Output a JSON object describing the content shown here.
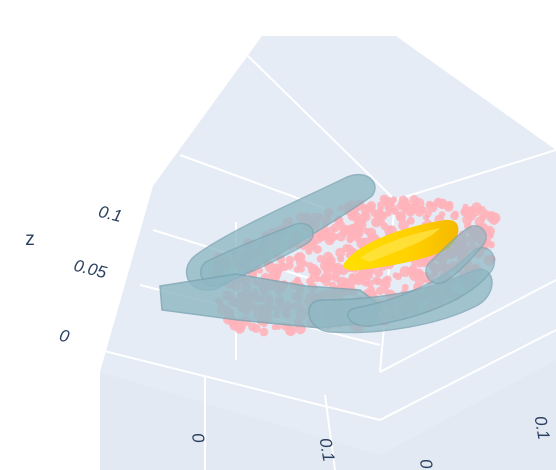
{
  "chart_data": {
    "type": "scatter",
    "projection": "3d",
    "axes": {
      "x": {
        "ticks": [
          "0",
          "0.1"
        ]
      },
      "y": {
        "ticks": [
          "0",
          "0.1"
        ]
      },
      "z": {
        "title": "z",
        "ticks": [
          "0",
          "0.05",
          "0.1"
        ]
      }
    },
    "series": [
      {
        "kind": "point-cloud",
        "color": "#ffb3ba"
      },
      {
        "kind": "surface",
        "color": "#ffd400"
      },
      {
        "kind": "hand-mesh",
        "color": "#8fb8c4"
      }
    ],
    "grid": true,
    "background": "#e5ecf6",
    "legend": "none"
  }
}
